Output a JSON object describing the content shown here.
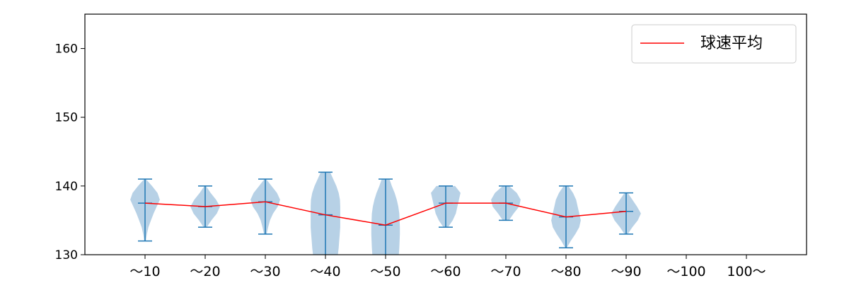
{
  "chart_data": {
    "type": "violin",
    "categories": [
      "～10",
      "～20",
      "～30",
      "～40",
      "～50",
      "～60",
      "～70",
      "～80",
      "～90",
      "～100",
      "100～"
    ],
    "ylim": [
      130,
      165
    ],
    "yticks": [
      130,
      140,
      150,
      160
    ],
    "legend": {
      "location": "top-right",
      "entries": [
        "球速平均"
      ]
    },
    "series": [
      {
        "name": "球速平均",
        "type": "line",
        "color": "#ff0000",
        "values": [
          137.5,
          137.0,
          137.7,
          135.8,
          134.3,
          137.5,
          137.5,
          135.5,
          136.3,
          null,
          null
        ]
      }
    ],
    "violins": [
      {
        "category": "～10",
        "min": 132,
        "max": 141,
        "mean": 137.5,
        "shape": [
          [
            132,
            0.05
          ],
          [
            133,
            0.12
          ],
          [
            134,
            0.22
          ],
          [
            135,
            0.38
          ],
          [
            136,
            0.55
          ],
          [
            137,
            0.75
          ],
          [
            138,
            0.95
          ],
          [
            139,
            0.8
          ],
          [
            140,
            0.45
          ],
          [
            141,
            0.05
          ]
        ]
      },
      {
        "category": "～20",
        "min": 134,
        "max": 140,
        "mean": 137.0,
        "shape": [
          [
            134,
            0.1
          ],
          [
            135,
            0.4
          ],
          [
            136,
            0.75
          ],
          [
            137,
            0.95
          ],
          [
            138,
            0.7
          ],
          [
            139,
            0.35
          ],
          [
            140,
            0.05
          ]
        ]
      },
      {
        "category": "～30",
        "min": 133,
        "max": 141,
        "mean": 137.7,
        "shape": [
          [
            133,
            0.08
          ],
          [
            134,
            0.18
          ],
          [
            135,
            0.3
          ],
          [
            136,
            0.5
          ],
          [
            137,
            0.8
          ],
          [
            138,
            0.95
          ],
          [
            139,
            0.75
          ],
          [
            140,
            0.4
          ],
          [
            141,
            0.05
          ]
        ]
      },
      {
        "category": "～40",
        "min": 126,
        "max": 142,
        "mean": 135.8,
        "shape": [
          [
            130,
            0.8
          ],
          [
            131,
            0.85
          ],
          [
            132,
            0.88
          ],
          [
            133,
            0.92
          ],
          [
            134,
            0.95
          ],
          [
            135,
            0.95
          ],
          [
            136,
            0.95
          ],
          [
            137,
            0.95
          ],
          [
            138,
            0.93
          ],
          [
            139,
            0.85
          ],
          [
            140,
            0.7
          ],
          [
            141,
            0.5
          ],
          [
            142,
            0.3
          ]
        ]
      },
      {
        "category": "～50",
        "min": 126,
        "max": 141,
        "mean": 134.3,
        "shape": [
          [
            130,
            0.85
          ],
          [
            131,
            0.88
          ],
          [
            132,
            0.9
          ],
          [
            133,
            0.92
          ],
          [
            134,
            0.92
          ],
          [
            135,
            0.9
          ],
          [
            136,
            0.88
          ],
          [
            137,
            0.82
          ],
          [
            138,
            0.72
          ],
          [
            139,
            0.58
          ],
          [
            140,
            0.4
          ],
          [
            141,
            0.25
          ]
        ]
      },
      {
        "category": "～60",
        "min": 134,
        "max": 140,
        "mean": 137.5,
        "shape": [
          [
            134,
            0.15
          ],
          [
            135,
            0.45
          ],
          [
            136,
            0.65
          ],
          [
            137,
            0.75
          ],
          [
            138,
            0.85
          ],
          [
            139,
            0.95
          ],
          [
            140,
            0.6
          ]
        ]
      },
      {
        "category": "～70",
        "min": 135,
        "max": 140,
        "mean": 137.5,
        "shape": [
          [
            135,
            0.2
          ],
          [
            136,
            0.5
          ],
          [
            137,
            0.85
          ],
          [
            138,
            0.95
          ],
          [
            139,
            0.7
          ],
          [
            140,
            0.2
          ]
        ]
      },
      {
        "category": "～80",
        "min": 131,
        "max": 140,
        "mean": 135.5,
        "shape": [
          [
            131,
            0.05
          ],
          [
            132,
            0.3
          ],
          [
            133,
            0.6
          ],
          [
            134,
            0.85
          ],
          [
            135,
            0.95
          ],
          [
            136,
            0.85
          ],
          [
            137,
            0.75
          ],
          [
            138,
            0.65
          ],
          [
            139,
            0.45
          ],
          [
            140,
            0.15
          ]
        ]
      },
      {
        "category": "～90",
        "min": 133,
        "max": 139,
        "mean": 136.3,
        "shape": [
          [
            133,
            0.1
          ],
          [
            134,
            0.4
          ],
          [
            135,
            0.75
          ],
          [
            136,
            0.95
          ],
          [
            137,
            0.7
          ],
          [
            138,
            0.4
          ],
          [
            139,
            0.1
          ]
        ]
      }
    ]
  },
  "colors": {
    "violin_fill": "#b3cfe5",
    "violin_line": "#1f77b4",
    "mean_line": "#ff0000",
    "axis": "#000000"
  }
}
